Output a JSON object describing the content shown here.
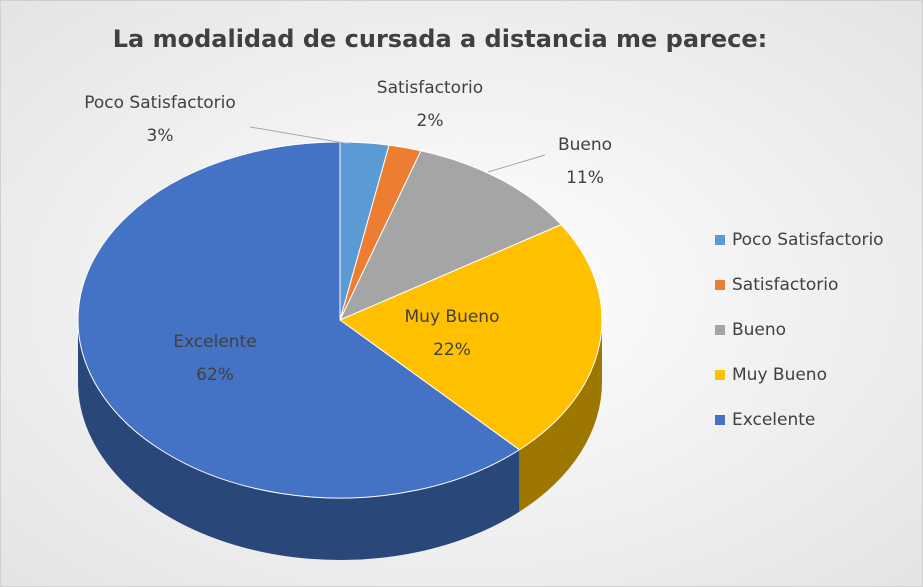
{
  "chart_data": {
    "type": "pie",
    "title": "La modalidad de cursada a distancia me parece:",
    "categories": [
      "Poco Satisfactorio",
      "Satisfactorio",
      "Bueno",
      "Muy Bueno",
      "Excelente"
    ],
    "values": [
      3,
      2,
      11,
      22,
      62
    ],
    "value_labels": [
      "3%",
      "2%",
      "11%",
      "22%",
      "62%"
    ],
    "colors": [
      "#5b9bd5",
      "#ed7d31",
      "#a5a5a5",
      "#ffc000",
      "#4472c4"
    ],
    "legend": "right"
  }
}
